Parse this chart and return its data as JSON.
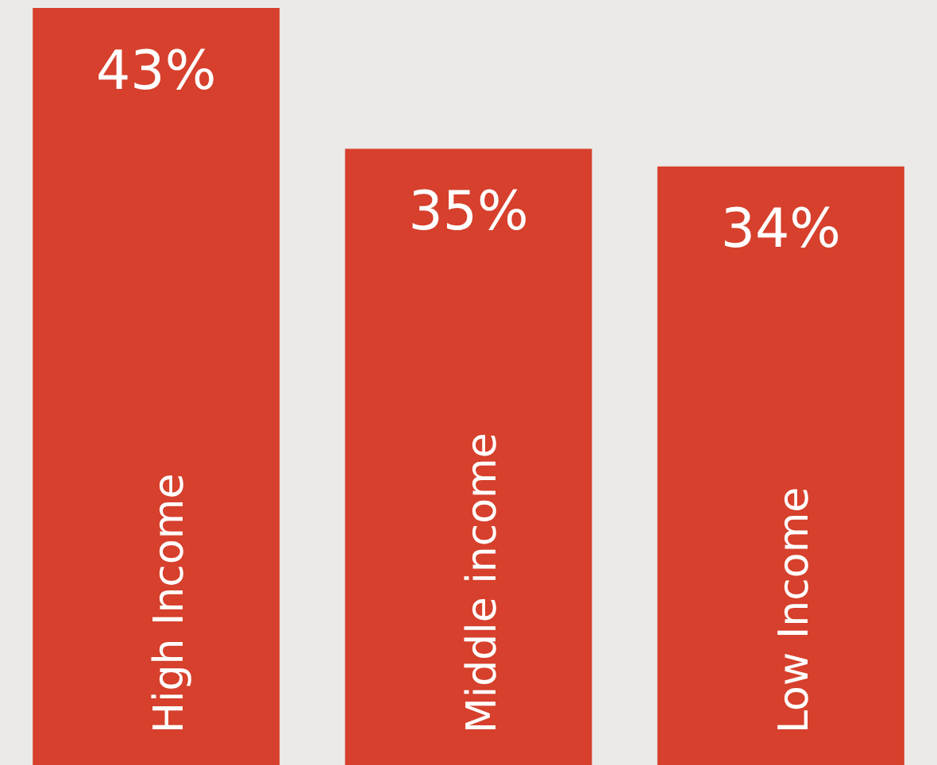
{
  "chart_data": {
    "type": "bar",
    "categories": [
      "High Income",
      "Middle income",
      "Low Income"
    ],
    "values": [
      43,
      35,
      34
    ],
    "value_labels": [
      "43%",
      "35%",
      "34%"
    ],
    "color": "#d6402c"
  }
}
